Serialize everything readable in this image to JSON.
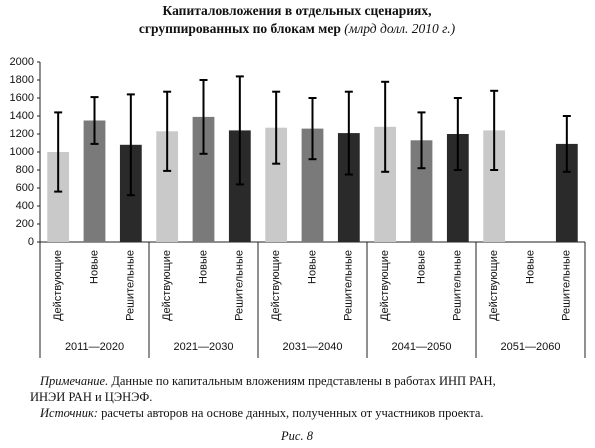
{
  "chart_data": {
    "type": "bar",
    "title": "Капиталовложения в отдельных сценариях,",
    "subtitle": "сгруппированных по блокам мер",
    "units": "(млрд долл. 2010 г.)",
    "categories": [
      "2011—2020",
      "2021—2030",
      "2031—2040",
      "2041—2050",
      "2051—2060"
    ],
    "series": [
      {
        "name": "Действующие",
        "color": "#c9c9c9",
        "values": [
          1000,
          1230,
          1270,
          1280,
          1240
        ],
        "errors": [
          440,
          440,
          400,
          500,
          440
        ]
      },
      {
        "name": "Новые",
        "color": "#7a7a7a",
        "values": [
          1350,
          1390,
          1260,
          1130,
          null
        ],
        "errors": [
          260,
          410,
          340,
          310,
          null
        ]
      },
      {
        "name": "Решительные",
        "color": "#2a2a2a",
        "values": [
          1080,
          1240,
          1210,
          1200,
          1090
        ],
        "errors": [
          560,
          600,
          460,
          400,
          310
        ]
      }
    ],
    "ylim": [
      0,
      2000
    ],
    "yticks": [
      0,
      200,
      400,
      600,
      800,
      1000,
      1200,
      1400,
      1600,
      1800,
      2000
    ]
  },
  "notes": [
    {
      "label": "Примечание.",
      "text": "Данные по капитальным вложениям представлены в работах ИНП РАН,"
    },
    {
      "label": "",
      "text": "ИНЭИ РАН и ЦЭНЭФ."
    },
    {
      "label": "Источник:",
      "text": "расчеты авторов на основе данных, полученных от участников проекта."
    }
  ],
  "figure_label": "Рис. 8"
}
